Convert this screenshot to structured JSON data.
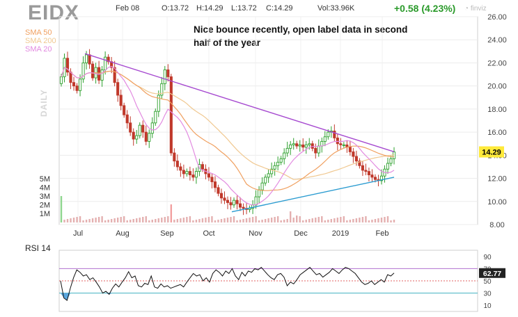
{
  "header": {
    "ticker": "EIDX",
    "date": "Feb 08",
    "open": "O:13.72",
    "high": "H:14.29",
    "low": "L:13.72",
    "close": "C:14.29",
    "volume": "Vol:33.96K",
    "change": "+0.58 (4.23%)",
    "brand": "finviz"
  },
  "legend": {
    "sma50": "SMA 50",
    "sma200": "SMA 200",
    "sma20": "SMA 20",
    "period": "DAILY"
  },
  "annotation": "Nice bounce recently, open label data in second half of the year",
  "colors": {
    "up": "#2ca02c",
    "down": "#c0392b",
    "sma50": "#f0a060",
    "sma200": "#f0c890",
    "sma20": "#e28ae0",
    "trendline_top": "#a64ad0",
    "trendline_bottom": "#2a9bd0",
    "volume": "#8fd68f",
    "price_tag": "#ffea3a",
    "rsi_tag": "#222222"
  },
  "chart_data": [
    {
      "type": "candlestick",
      "x_ticks": [
        "Jul",
        "Aug",
        "Sep",
        "Oct",
        "Nov",
        "Dec",
        "2019",
        "Feb"
      ],
      "y_ticks": [
        "8.00",
        "10.00",
        "12.00",
        "14.00",
        "16.00",
        "18.00",
        "20.00",
        "22.00",
        "24.00",
        "26.00"
      ],
      "ylim": [
        8,
        26
      ],
      "last_price": "14.29",
      "volume_ticks": [
        "1M",
        "2M",
        "3M",
        "4M",
        "5M"
      ],
      "closes": [
        20.8,
        22.4,
        21.2,
        20.3,
        20.0,
        19.6,
        20.6,
        22.0,
        22.7,
        21.9,
        20.7,
        21.6,
        20.5,
        21.4,
        22.5,
        22.1,
        21.6,
        20.3,
        19.2,
        18.3,
        17.5,
        16.8,
        16.0,
        15.4,
        15.7,
        16.6,
        16.0,
        15.2,
        15.9,
        16.8,
        17.8,
        19.2,
        20.2,
        21.4,
        20.8,
        14.2,
        13.5,
        13.0,
        12.7,
        12.4,
        12.6,
        12.3,
        12.1,
        12.6,
        13.2,
        12.8,
        12.4,
        12.1,
        11.7,
        11.2,
        10.7,
        10.3,
        10.1,
        9.9,
        9.7,
        10.1,
        9.8,
        9.5,
        9.4,
        9.3,
        9.4,
        9.7,
        10.4,
        11.0,
        11.6,
        12.1,
        12.4,
        12.8,
        13.1,
        13.4,
        13.7,
        14.2,
        14.6,
        14.9,
        15.0,
        14.8,
        14.9,
        14.7,
        14.9,
        15.0,
        14.6,
        14.2,
        14.8,
        15.2,
        15.6,
        16.0,
        16.1,
        15.5,
        15.0,
        14.9,
        14.9,
        14.7,
        14.3,
        13.9,
        13.5,
        13.1,
        12.7,
        12.6,
        12.3,
        12.1,
        11.9,
        11.8,
        12.2,
        12.8,
        13.3,
        13.7,
        14.29
      ],
      "annotations": [
        {
          "type": "trendline",
          "from": [
            "Jul",
            22.8
          ],
          "to": [
            "Feb",
            14.3
          ]
        },
        {
          "type": "trendline",
          "from": [
            "Oct",
            9.1
          ],
          "to": [
            "Feb",
            12.1
          ]
        }
      ]
    },
    {
      "type": "line",
      "name": "RSI 14",
      "y_ticks": [
        "10",
        "30",
        "50",
        "70",
        "90"
      ],
      "ylim": [
        0,
        100
      ],
      "levels": [
        30,
        50,
        70
      ],
      "last_value": "62.77",
      "values": [
        50,
        22,
        18,
        38,
        55,
        68,
        64,
        58,
        60,
        52,
        55,
        48,
        40,
        30,
        33,
        28,
        38,
        45,
        40,
        48,
        55,
        65,
        55,
        58,
        42,
        40,
        46,
        44,
        58,
        40,
        38,
        45,
        40,
        42,
        38,
        40,
        42,
        44,
        40,
        48,
        55,
        62,
        58,
        60,
        50,
        55,
        48,
        62,
        68,
        64,
        58,
        66,
        62,
        70,
        58,
        52,
        64,
        58,
        66,
        64,
        70,
        68,
        72,
        66,
        60,
        55,
        52,
        60,
        62,
        56,
        42,
        48,
        45,
        52,
        60,
        64,
        68,
        72,
        66,
        60,
        62,
        56,
        60,
        64,
        70,
        66,
        62,
        68,
        72,
        70,
        66,
        62,
        55,
        48,
        44,
        46,
        50,
        44,
        48,
        52,
        48,
        60,
        58,
        62.77
      ]
    }
  ]
}
